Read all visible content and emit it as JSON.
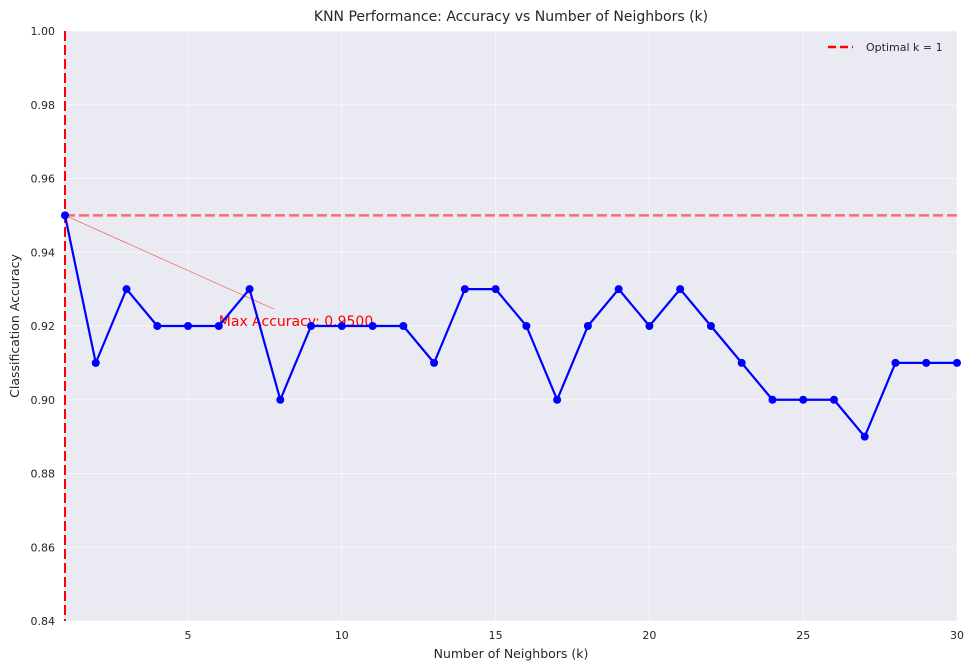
{
  "chart_data": {
    "type": "line",
    "title": "KNN Performance: Accuracy vs Number of Neighbors (k)",
    "xlabel": "Number of Neighbors (k)",
    "ylabel": "Classification Accuracy",
    "xlim": [
      1,
      30
    ],
    "ylim": [
      0.84,
      1.0
    ],
    "x_ticks": [
      5,
      10,
      15,
      20,
      25,
      30
    ],
    "y_ticks": [
      0.84,
      0.86,
      0.88,
      0.9,
      0.92,
      0.94,
      0.96,
      0.98,
      1.0
    ],
    "x_tick_labels": [
      "5",
      "10",
      "15",
      "20",
      "25",
      "30"
    ],
    "y_tick_labels": [
      "0.84",
      "0.86",
      "0.88",
      "0.90",
      "0.92",
      "0.94",
      "0.96",
      "0.98",
      "1.00"
    ],
    "grid": true,
    "series": [
      {
        "x": [
          1,
          2,
          3,
          4,
          5,
          6,
          7,
          8,
          9,
          10,
          11,
          12,
          13,
          14,
          15,
          16,
          17,
          18,
          19,
          20,
          21,
          22,
          23,
          24,
          25,
          26,
          27,
          28,
          29,
          30
        ],
        "values": [
          0.95,
          0.91,
          0.93,
          0.92,
          0.92,
          0.92,
          0.93,
          0.9,
          0.92,
          0.92,
          0.92,
          0.92,
          0.91,
          0.93,
          0.93,
          0.92,
          0.9,
          0.92,
          0.93,
          0.92,
          0.93,
          0.92,
          0.91,
          0.9,
          0.9,
          0.9,
          0.89,
          0.91,
          0.91,
          0.91
        ],
        "color": "#0000ff"
      }
    ],
    "reference_lines": {
      "vertical": {
        "x": 1,
        "color": "#ff0000",
        "style": "dashed",
        "legend": "Optimal k = 1"
      },
      "horizontal": {
        "y": 0.95,
        "color": "#ff6b6b",
        "style": "dashed"
      }
    },
    "annotation": {
      "text": "Max Accuracy: 0.9500",
      "point": [
        1,
        0.95
      ],
      "text_pos": [
        6,
        0.92
      ],
      "color": "#ff0000"
    },
    "legend": {
      "placement": "top-right",
      "entries": [
        "Optimal k = 1"
      ]
    },
    "colors": {
      "plot_background": "#eaeaf2",
      "grid": "#ffffff",
      "line": "#0000ff",
      "marker": "#0000ff",
      "optimal_line": "#ff0000",
      "max_line": "#ff6b6b",
      "annotation": "#ff0000"
    }
  }
}
